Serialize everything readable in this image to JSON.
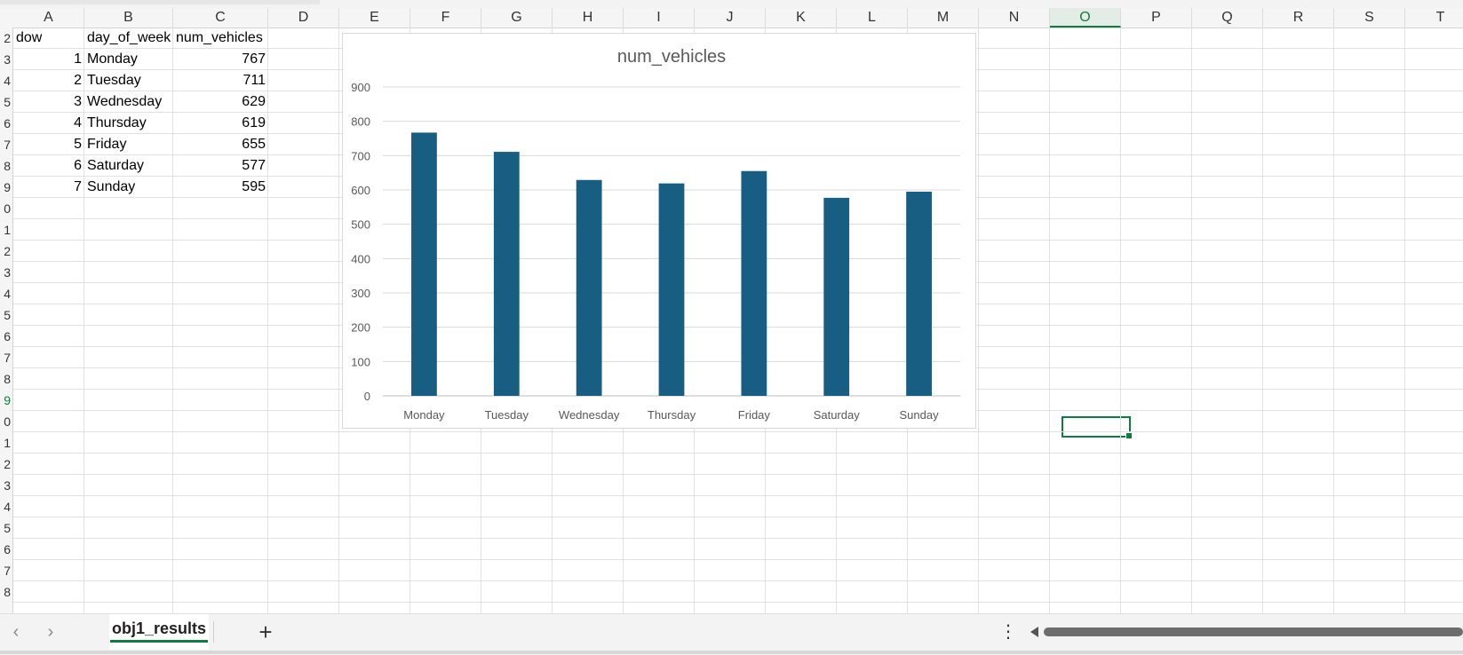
{
  "columns": [
    "A",
    "B",
    "C",
    "D",
    "E",
    "F",
    "G",
    "H",
    "I",
    "J",
    "K",
    "L",
    "M",
    "N",
    "O",
    "P",
    "Q",
    "R",
    "S",
    "T"
  ],
  "active_column": "O",
  "rows": [
    "2",
    "3",
    "4",
    "5",
    "6",
    "7",
    "8",
    "9",
    "0",
    "1",
    "2",
    "3",
    "4",
    "5",
    "6",
    "7",
    "8",
    "9",
    "0",
    "1",
    "2",
    "3",
    "4",
    "5",
    "6",
    "7",
    "8"
  ],
  "active_row_index": 17,
  "table": {
    "headers": [
      "dow",
      "day_of_week",
      "num_vehicles"
    ],
    "rows": [
      [
        "1",
        "Monday",
        "767"
      ],
      [
        "2",
        "Tuesday",
        "711"
      ],
      [
        "3",
        "Wednesday",
        "629"
      ],
      [
        "4",
        "Thursday",
        "619"
      ],
      [
        "5",
        "Friday",
        "655"
      ],
      [
        "6",
        "Saturday",
        "577"
      ],
      [
        "7",
        "Sunday",
        "595"
      ]
    ]
  },
  "chart_data": {
    "type": "bar",
    "title": "num_vehicles",
    "categories": [
      "Monday",
      "Tuesday",
      "Wednesday",
      "Thursday",
      "Friday",
      "Saturday",
      "Sunday"
    ],
    "values": [
      767,
      711,
      629,
      619,
      655,
      577,
      595
    ],
    "ylim": [
      0,
      900
    ],
    "yticks": [
      "0",
      "100",
      "200",
      "300",
      "400",
      "500",
      "600",
      "700",
      "800",
      "900"
    ],
    "xlabel": "",
    "ylabel": "",
    "grid": true,
    "bar_color": "#175e82"
  },
  "tabs": {
    "prev_glyph": "‹",
    "next_glyph": "›",
    "sheet_name": "obj1_results",
    "add_glyph": "+",
    "more_glyph": "⋮"
  },
  "colors": {
    "accent": "#107c41",
    "bar": "#175e82"
  }
}
